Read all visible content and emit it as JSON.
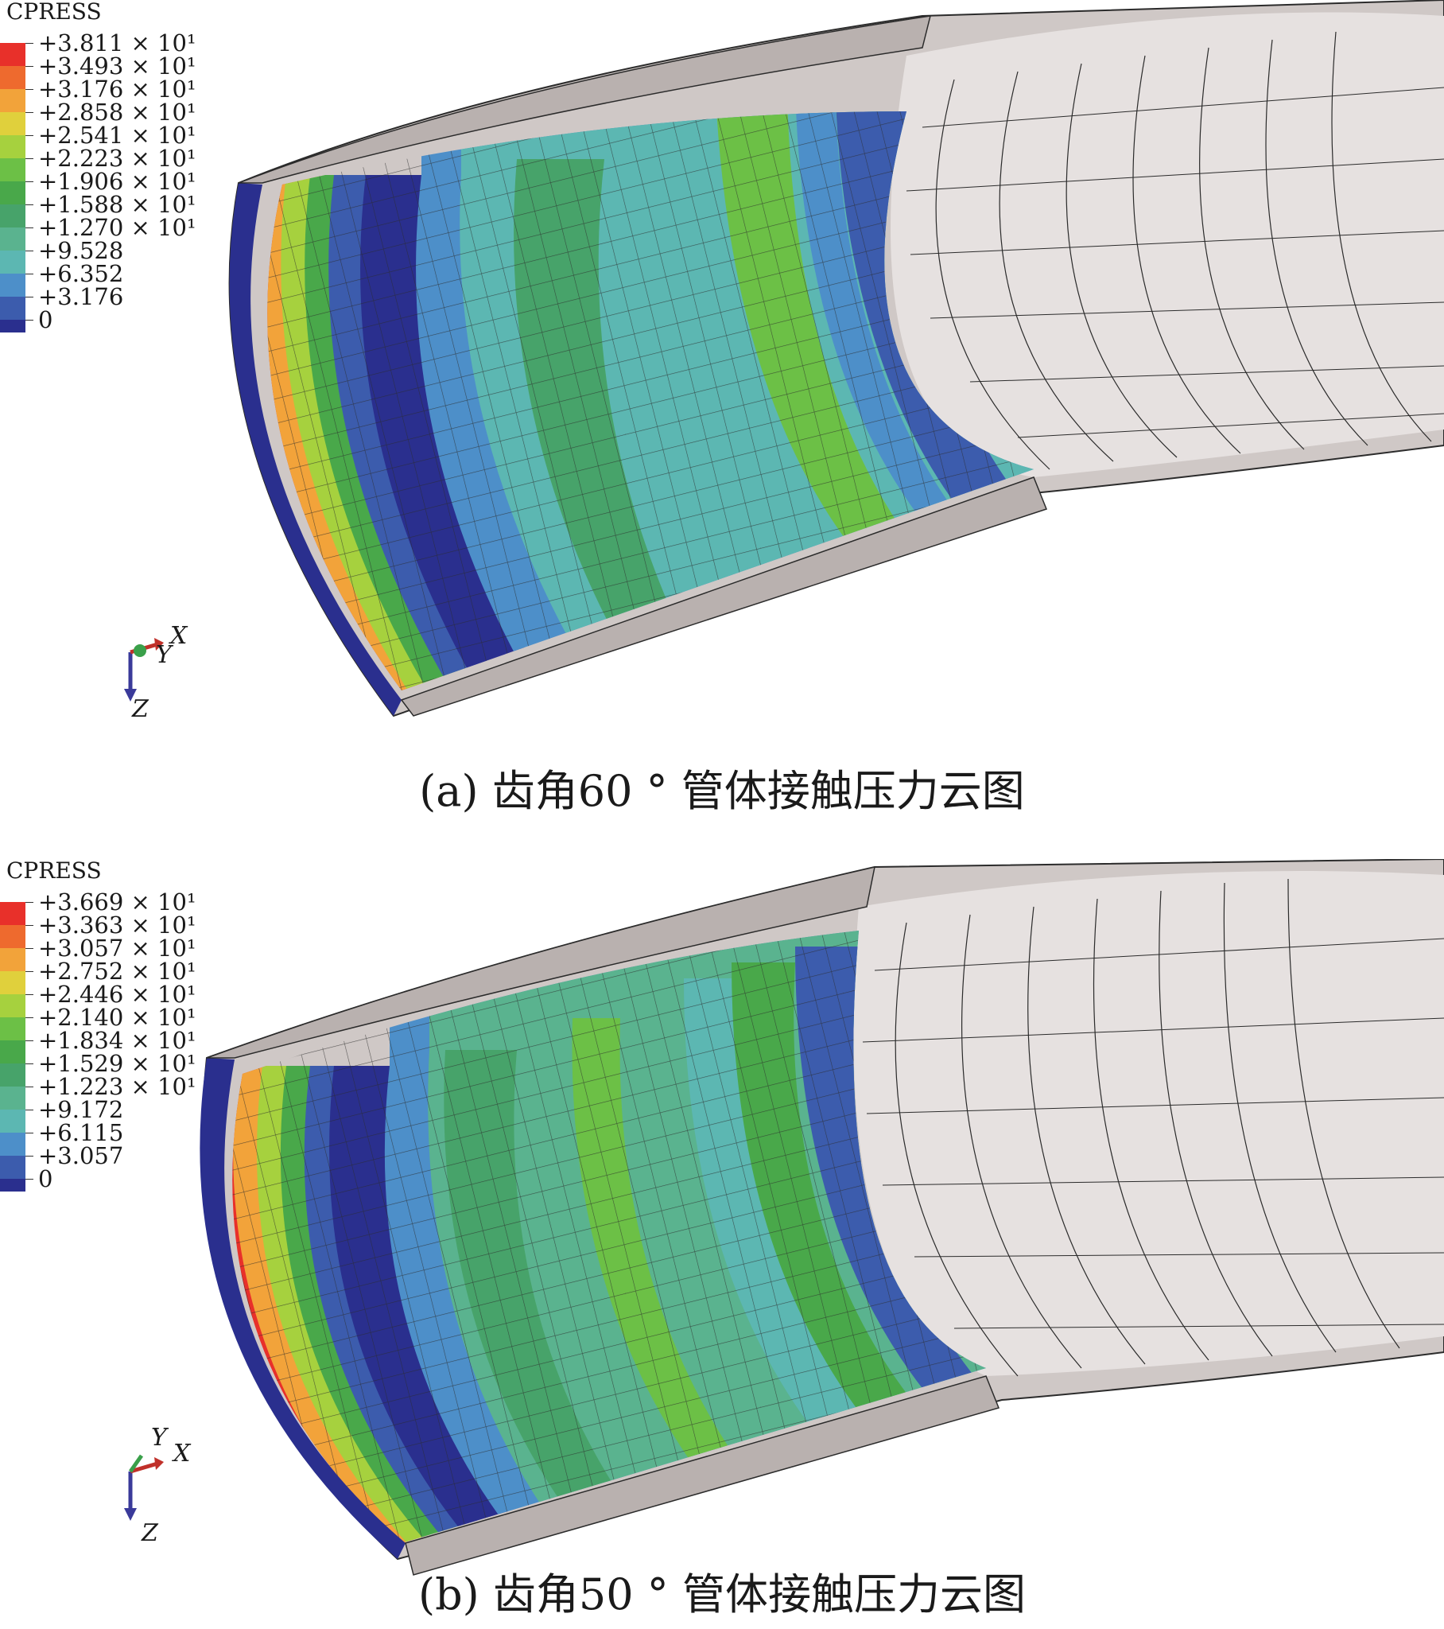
{
  "colors": {
    "gray_surface": "#d8d2d0",
    "gray_dark": "#a8a09e",
    "mesh_line": "#2b2b2b"
  },
  "panels": [
    {
      "id": "a",
      "legend": {
        "title": "CPRESS",
        "labels": [
          "+3.811 × 10¹",
          "+3.493 × 10¹",
          "+3.176 × 10¹",
          "+2.858 × 10¹",
          "+2.541 × 10¹",
          "+2.223 × 10¹",
          "+1.906 × 10¹",
          "+1.588 × 10¹",
          "+1.270 × 10¹",
          "+9.528",
          "+6.352",
          "+3.176",
          "0"
        ],
        "colors": [
          "#e8302a",
          "#ee6a2e",
          "#f2a33a",
          "#e0d03c",
          "#a6d13e",
          "#6cc046",
          "#49a84a",
          "#47a36a",
          "#5ab38f",
          "#5cb7b2",
          "#4d8fc9",
          "#3c5cad",
          "#2a2f8e"
        ]
      },
      "triad": {
        "x": "X",
        "y": "Y",
        "z": "Z"
      },
      "caption": "(a) 齿角60 ° 管体接触压力云图"
    },
    {
      "id": "b",
      "legend": {
        "title": "CPRESS",
        "labels": [
          "+3.669 × 10¹",
          "+3.363 × 10¹",
          "+3.057 × 10¹",
          "+2.752 × 10¹",
          "+2.446 × 10¹",
          "+2.140 × 10¹",
          "+1.834 × 10¹",
          "+1.529 × 10¹",
          "+1.223 × 10¹",
          "+9.172",
          "+6.115",
          "+3.057",
          "0"
        ],
        "colors": [
          "#e8302a",
          "#ee6a2e",
          "#f2a33a",
          "#e0d03c",
          "#a6d13e",
          "#6cc046",
          "#49a84a",
          "#47a36a",
          "#5ab38f",
          "#5cb7b2",
          "#4d8fc9",
          "#3c5cad",
          "#2a2f8e"
        ]
      },
      "triad": {
        "x": "X",
        "y": "Y",
        "z": "Z"
      },
      "caption": "(b) 齿角50 ° 管体接触压力云图"
    }
  ]
}
